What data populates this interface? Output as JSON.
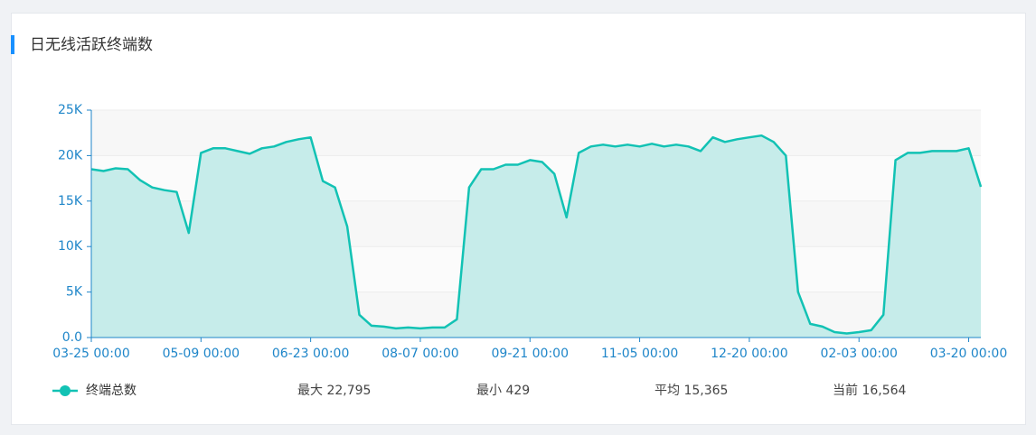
{
  "title": "日无线活跃终端数",
  "chart_data": {
    "type": "area",
    "color": "#12c2b4",
    "fill": "#c6ecea",
    "categories": [
      "03-25 00:00",
      null,
      null,
      null,
      null,
      null,
      null,
      null,
      null,
      "05-09 00:00",
      null,
      null,
      null,
      null,
      null,
      null,
      null,
      null,
      "06-23 00:00",
      null,
      null,
      null,
      null,
      null,
      null,
      null,
      null,
      "08-07 00:00",
      null,
      null,
      null,
      null,
      null,
      null,
      null,
      null,
      "09-21 00:00",
      null,
      null,
      null,
      null,
      null,
      null,
      null,
      null,
      "11-05 00:00",
      null,
      null,
      null,
      null,
      null,
      null,
      null,
      null,
      "12-20 00:00",
      null,
      null,
      null,
      null,
      null,
      null,
      null,
      null,
      "02-03 00:00",
      null,
      null,
      null,
      null,
      null,
      null,
      null,
      null,
      "03-20 00:00",
      null
    ],
    "series": [
      {
        "name": "终端总数",
        "color": "#12c2b4",
        "values": [
          18500,
          18300,
          18600,
          18500,
          17300,
          16500,
          16200,
          16000,
          11500,
          20300,
          20800,
          20800,
          20500,
          20200,
          20800,
          21000,
          21500,
          21800,
          22000,
          17200,
          16500,
          12200,
          2500,
          1300,
          1200,
          1000,
          1100,
          1000,
          1100,
          1100,
          2000,
          16500,
          18500,
          18500,
          19000,
          19000,
          19500,
          19300,
          18000,
          13200,
          20300,
          21000,
          21200,
          21000,
          21200,
          21000,
          21300,
          21000,
          21200,
          21000,
          20500,
          22000,
          21500,
          21800,
          22000,
          22200,
          21500,
          20000,
          5000,
          1500,
          1200,
          600,
          450,
          600,
          800,
          2500,
          19500,
          20300,
          20300,
          20500,
          20500,
          20500,
          20800,
          16564
        ]
      }
    ],
    "ylim": [
      0,
      25000
    ],
    "yticks": [
      {
        "value": 0,
        "label": "0.0"
      },
      {
        "value": 5000,
        "label": "5K"
      },
      {
        "value": 10000,
        "label": "10K"
      },
      {
        "value": 15000,
        "label": "15K"
      },
      {
        "value": 20000,
        "label": "20K"
      },
      {
        "value": 25000,
        "label": "25K"
      }
    ],
    "grid": true,
    "stats": [
      "最大 22,795",
      "最小 429",
      "平均 15,365",
      "当前 16,564"
    ]
  }
}
